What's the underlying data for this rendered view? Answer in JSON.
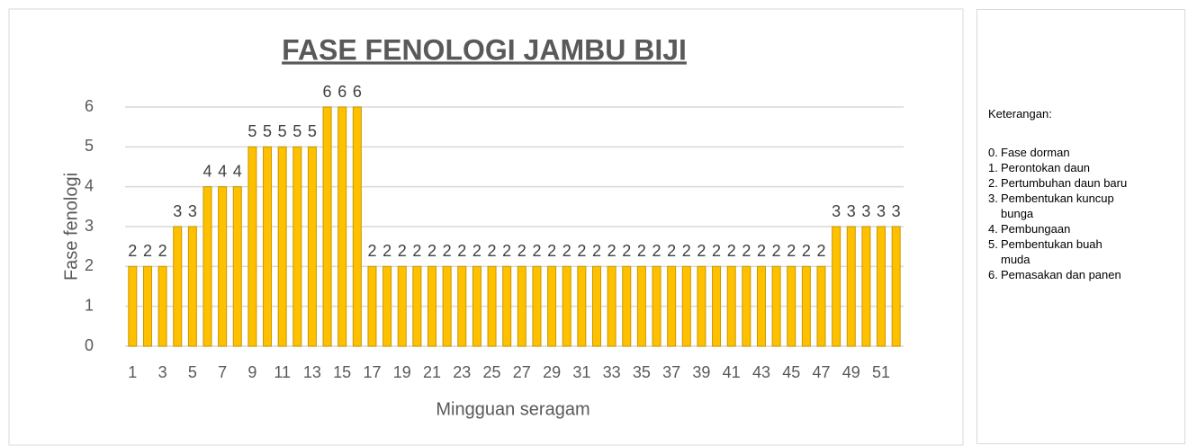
{
  "chart_data": {
    "type": "bar",
    "title": "FASE FENOLOGI JAMBU BIJI",
    "x_label": "Mingguan seragam",
    "y_label": "Fase fenologi",
    "categories": [
      1,
      null,
      3,
      null,
      5,
      null,
      7,
      null,
      9,
      null,
      11,
      null,
      13,
      null,
      15,
      null,
      17,
      null,
      19,
      null,
      21,
      null,
      23,
      null,
      25,
      null,
      27,
      null,
      29,
      null,
      31,
      null,
      33,
      null,
      35,
      null,
      37,
      null,
      39,
      null,
      41,
      null,
      43,
      null,
      45,
      null,
      47,
      null,
      49,
      null,
      51,
      null
    ],
    "values": [
      2,
      2,
      2,
      3,
      3,
      4,
      4,
      4,
      5,
      5,
      5,
      5,
      5,
      6,
      6,
      6,
      2,
      2,
      2,
      2,
      2,
      2,
      2,
      2,
      2,
      2,
      2,
      2,
      2,
      2,
      2,
      2,
      2,
      2,
      2,
      2,
      2,
      2,
      2,
      2,
      2,
      2,
      2,
      2,
      2,
      2,
      2,
      3,
      3,
      3,
      3,
      3
    ],
    "color": "#ffc000",
    "ylim": [
      0,
      6
    ],
    "yticks": [
      0,
      1,
      2,
      3,
      4,
      5,
      6
    ],
    "grid": true,
    "data_labels": true
  },
  "legend_note": {
    "title": "Keterangan:",
    "items": [
      {
        "number": "0.",
        "text": "Fase dorman"
      },
      {
        "number": "1.",
        "text": "Perontokan daun"
      },
      {
        "number": "2.",
        "text": "Pertumbuhan daun baru"
      },
      {
        "number": "3.",
        "text": "Pembentukan kuncup bunga"
      },
      {
        "number": "4.",
        "text": "Pembungaan"
      },
      {
        "number": "5.",
        "text": "Pembentukan buah muda"
      },
      {
        "number": "6.",
        "text": "Pemasakan dan panen"
      }
    ]
  }
}
